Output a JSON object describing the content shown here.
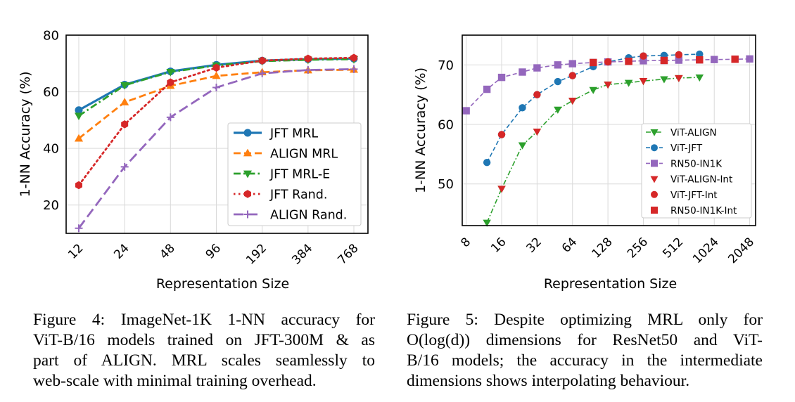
{
  "chart_data": [
    {
      "type": "line",
      "xlabel": "Representation Size",
      "ylabel": "1-NN Accuracy (%)",
      "categories": [
        "12",
        "24",
        "48",
        "96",
        "192",
        "384",
        "768"
      ],
      "y_ticks": [
        "20",
        "40",
        "60",
        "80"
      ],
      "ylim": [
        10,
        80
      ],
      "grid": true,
      "legend_position": "lower-right",
      "series": [
        {
          "name": "JFT MRL",
          "color": "#1f77b4",
          "marker": "circle",
          "dash": "solid",
          "values": [
            53.5,
            62.5,
            67.2,
            69.5,
            71.0,
            71.5,
            71.7
          ]
        },
        {
          "name": "ALIGN MRL",
          "color": "#ff7f0e",
          "marker": "triangle-up",
          "dash": "dashed",
          "values": [
            43.5,
            56.3,
            62.1,
            65.6,
            66.9,
            67.6,
            67.8
          ]
        },
        {
          "name": "JFT MRL-E",
          "color": "#2ca02c",
          "marker": "triangle-down",
          "dash": "dashdot",
          "values": [
            51.5,
            62.3,
            67.0,
            69.3,
            70.8,
            71.3,
            71.5
          ]
        },
        {
          "name": "JFT Rand.",
          "color": "#d62728",
          "marker": "hexagon",
          "dash": "dotted",
          "values": [
            27.0,
            48.5,
            63.3,
            68.5,
            71.0,
            71.7,
            72.0
          ]
        },
        {
          "name": "ALIGN Rand.",
          "color": "#9467bd",
          "marker": "plus",
          "dash": "longdash",
          "values": [
            11.8,
            33.5,
            51.0,
            61.5,
            66.5,
            67.7,
            68.0
          ]
        }
      ]
    },
    {
      "type": "line",
      "xlabel": "Representation Size",
      "ylabel": "1-NN Accuracy (%)",
      "x_ticks": [
        "8",
        "16",
        "32",
        "64",
        "128",
        "256",
        "512",
        "1024",
        "2048"
      ],
      "y_ticks": [
        "50",
        "60",
        "70"
      ],
      "xscale": "log2",
      "xlim": [
        7.4,
        2300
      ],
      "ylim": [
        43,
        75
      ],
      "grid": true,
      "legend_position": "lower-right",
      "series": [
        {
          "name": "ViT-ALIGN",
          "color": "#2ca02c",
          "marker": "triangle-down",
          "dash": "dashdot",
          "x": [
            12,
            16,
            24,
            32,
            48,
            64,
            96,
            128,
            192,
            256,
            384,
            512,
            768
          ],
          "y": [
            43.5,
            49.2,
            56.5,
            58.8,
            62.5,
            64.0,
            65.8,
            66.7,
            67.0,
            67.3,
            67.6,
            67.8,
            67.9
          ]
        },
        {
          "name": "ViT-JFT",
          "color": "#1f77b4",
          "marker": "circle",
          "dash": "dashed",
          "x": [
            12,
            16,
            24,
            32,
            48,
            64,
            96,
            128,
            192,
            256,
            384,
            512,
            768
          ],
          "y": [
            53.6,
            58.3,
            62.8,
            65.0,
            67.2,
            68.2,
            69.7,
            70.5,
            71.2,
            71.5,
            71.6,
            71.7,
            71.8
          ]
        },
        {
          "name": "RN50-IN1K",
          "color": "#9467bd",
          "marker": "square",
          "dash": "dashed",
          "x": [
            8,
            12,
            16,
            24,
            32,
            48,
            64,
            96,
            128,
            192,
            256,
            384,
            512,
            768,
            1024,
            1536,
            2048
          ],
          "y": [
            62.3,
            65.9,
            67.9,
            68.8,
            69.5,
            70.0,
            70.2,
            70.4,
            70.5,
            70.6,
            70.7,
            70.75,
            70.8,
            70.85,
            70.9,
            70.95,
            71.0
          ]
        },
        {
          "name": "ViT-ALIGN-Int",
          "color": "#d62728",
          "marker": "triangle-down",
          "dash": "none",
          "x": [
            16,
            32,
            64,
            128,
            256,
            512
          ],
          "y": [
            49.2,
            58.8,
            64.0,
            66.7,
            67.3,
            67.8
          ]
        },
        {
          "name": "ViT-JFT-Int",
          "color": "#d62728",
          "marker": "circle",
          "dash": "none",
          "x": [
            16,
            32,
            64,
            128,
            256,
            512
          ],
          "y": [
            58.3,
            65.0,
            68.2,
            70.5,
            71.5,
            71.7
          ]
        },
        {
          "name": "RN50-IN1K-Int",
          "color": "#d62728",
          "marker": "square",
          "dash": "none",
          "x": [
            96,
            192,
            384,
            768,
            1536
          ],
          "y": [
            70.4,
            70.6,
            70.75,
            70.85,
            70.95
          ]
        }
      ]
    }
  ],
  "captions": {
    "fig4": {
      "lines": [
        "Figure 4: ImageNet-1K 1-NN accuracy for",
        "ViT-B/16 models trained on JFT-300M & as",
        "part of ALIGN. MRL scales seamlessly to",
        "web-scale with minimal training overhead."
      ]
    },
    "fig5": {
      "lines": [
        "Figure 5: Despite optimizing MRL only for",
        "O(log(d)) dimensions for ResNet50 and ViT-",
        "B/16 models; the accuracy in the intermediate",
        "dimensions shows interpolating behaviour."
      ]
    }
  }
}
